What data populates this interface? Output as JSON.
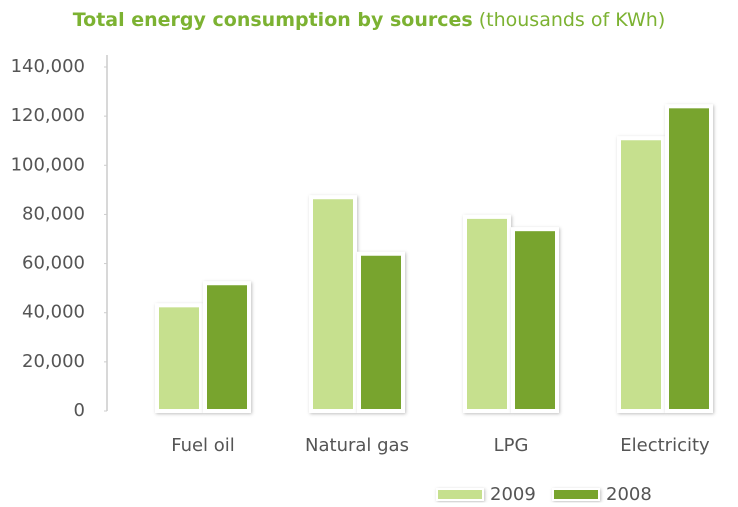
{
  "chart_data": {
    "type": "bar",
    "title": "Total energy consumption by sources",
    "subtitle": "(thousands of KWh)",
    "categories": [
      "Fuel oil",
      "Natural gas",
      "LPG",
      "Electricity"
    ],
    "series": [
      {
        "name": "2009",
        "color": "#c6e08e",
        "values": [
          43000,
          87000,
          79000,
          111000
        ]
      },
      {
        "name": "2008",
        "color": "#78a42f",
        "values": [
          52000,
          64000,
          74000,
          124000
        ]
      }
    ],
    "ylim": [
      0,
      140000
    ],
    "yticks": [
      0,
      {
        "value": 20000,
        "label": "20,000"
      },
      {
        "value": 40000,
        "label": "40,000"
      },
      {
        "value": 60000,
        "label": "60,000"
      },
      {
        "value": 80000,
        "label": "80,000"
      },
      {
        "value": 100000,
        "label": "100,000"
      },
      {
        "value": 120000,
        "label": "120,000"
      },
      {
        "value": 140000,
        "label": "140,000"
      }
    ],
    "legend": "bottom-right"
  }
}
